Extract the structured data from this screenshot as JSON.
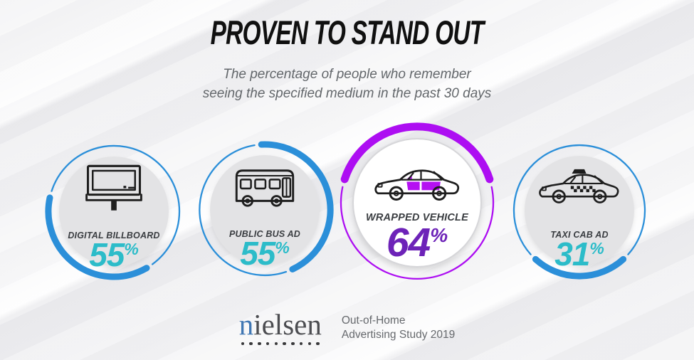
{
  "title": "PROVEN TO STAND OUT",
  "subtitle": {
    "line1": "The percentage of people who remember",
    "line2": "seeing the specified medium in the past 30 days"
  },
  "percent_sign": "%",
  "colors": {
    "blue_accent": "#2B8FD9",
    "purple_accent": "#AD0EF2",
    "teal_value": "#2CBCC9",
    "purple_value": "#6D23B8",
    "wrap_fill": "#B511F2"
  },
  "cards": [
    {
      "label": "DIGITAL BILLBOARD",
      "value": "55",
      "icon": "digital-billboard-icon",
      "accent": "#2B8FD9",
      "value_color": "#2CBCC9",
      "highlighted": false
    },
    {
      "label": "PUBLIC BUS AD",
      "value": "55",
      "icon": "public-bus-icon",
      "accent": "#2B8FD9",
      "value_color": "#2CBCC9",
      "highlighted": false
    },
    {
      "label": "WRAPPED VEHICLE",
      "value": "64",
      "icon": "wrapped-vehicle-icon",
      "accent": "#AD0EF2",
      "value_color": "#6D23B8",
      "wrap_color": "#B511F2",
      "highlighted": true
    },
    {
      "label": "TAXI CAB AD",
      "value": "31",
      "icon": "taxi-cab-icon",
      "accent": "#2B8FD9",
      "value_color": "#2CBCC9",
      "highlighted": false
    }
  ],
  "footer": {
    "brand_first": "n",
    "brand_rest": "ielsen",
    "brand": "nielsen",
    "brand_dots": 10,
    "source_line1": "Out-of-Home",
    "source_line2": "Advertising Study 2019"
  },
  "chart_data": {
    "type": "bar",
    "categories": [
      "Digital Billboard",
      "Public Bus Ad",
      "Wrapped Vehicle",
      "Taxi Cab Ad"
    ],
    "values": [
      55,
      55,
      64,
      31
    ],
    "unit": "%",
    "title": "Proven To Stand Out",
    "subtitle": "The percentage of people who remember seeing the specified medium in the past 30 days",
    "highlighted_category": "Wrapped Vehicle",
    "source": "Nielsen Out-of-Home Advertising Study 2019"
  }
}
